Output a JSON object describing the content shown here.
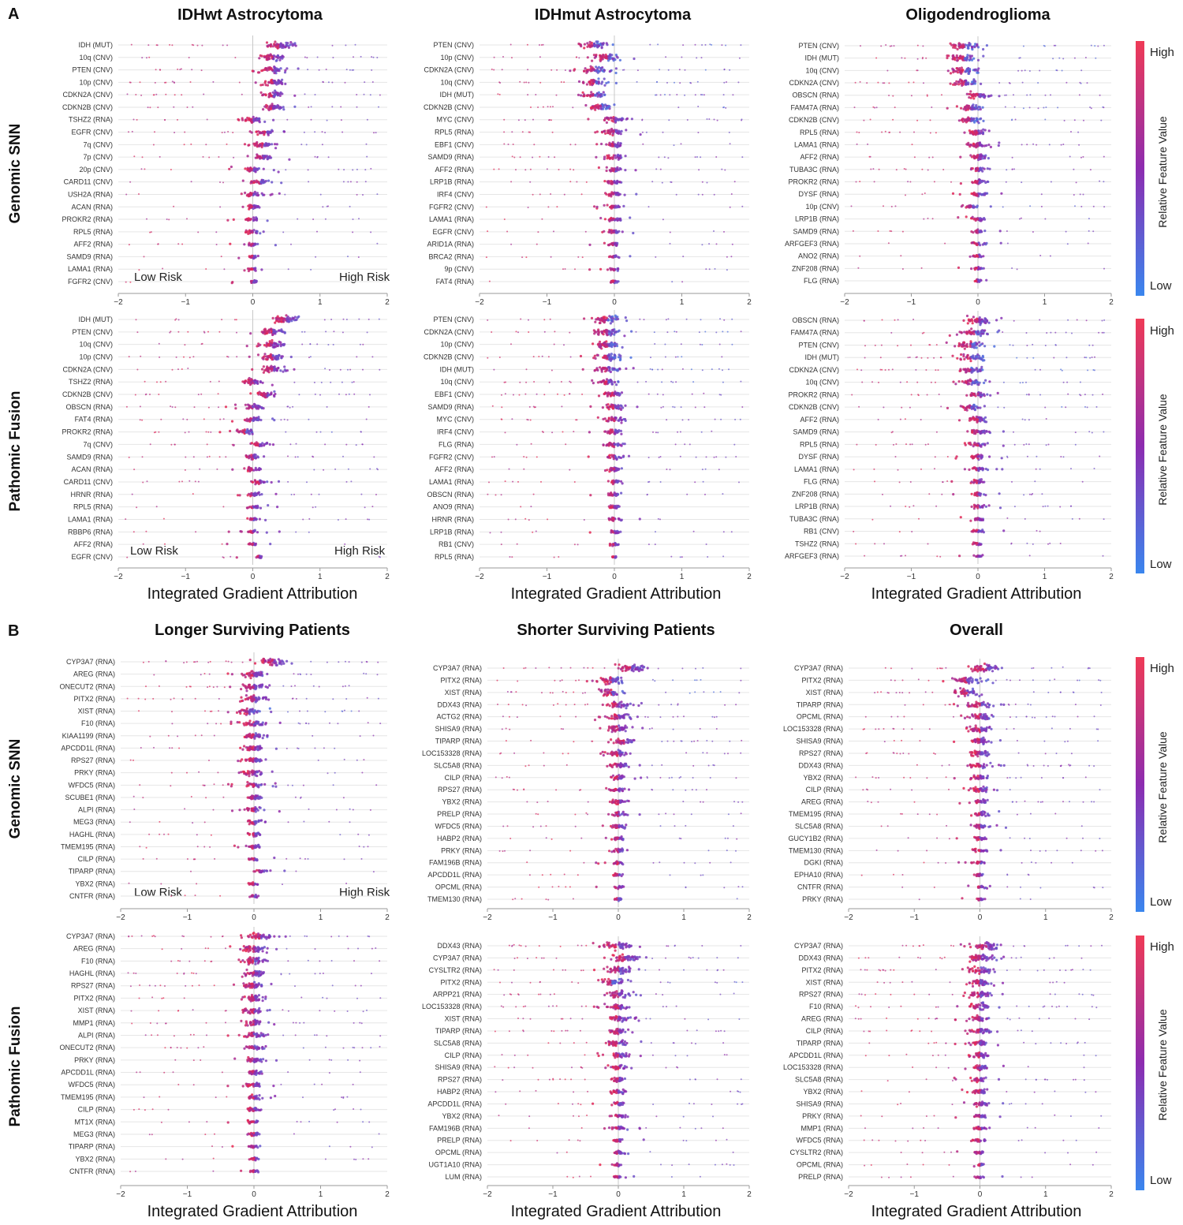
{
  "figure": {
    "panel_letters": [
      "A",
      "B"
    ],
    "row_labels": [
      "Genomic SNN",
      "Pathomic Fusion"
    ],
    "x_axis_title": "Integrated Gradient Attribution",
    "risk_labels": {
      "low": "Low Risk",
      "high": "High Risk"
    },
    "colorbar": {
      "high": "High",
      "low": "Low",
      "title": "Relative Feature Value",
      "color_high": "#ef3a56",
      "color_mid": "#8d2cb0",
      "color_low": "#3a86ee"
    },
    "colors": {
      "low": "#3a86ee",
      "mid": "#8d2cb0",
      "high": "#e8274f"
    }
  },
  "chart_data": [
    {
      "id": "a_gen_wt",
      "type": "beeswarm",
      "title": "IDHwt Astrocytoma",
      "row": "Genomic SNN",
      "xlim": [
        -2,
        2
      ],
      "xticks": [
        -2,
        -1,
        0,
        1,
        2
      ],
      "features": [
        "IDH (MUT)",
        "10q (CNV)",
        "PTEN (CNV)",
        "10p (CNV)",
        "CDKN2A (CNV)",
        "CDKN2B (CNV)",
        "TSHZ2 (RNA)",
        "EGFR (CNV)",
        "7q (CNV)",
        "7p (CNV)",
        "20p (CNV)",
        "CARD11 (CNV)",
        "USH2A (RNA)",
        "ACAN (RNA)",
        "PROKR2 (RNA)",
        "RPL5 (RNA)",
        "AFF2 (RNA)",
        "SAMD9 (RNA)",
        "LAMA1 (RNA)",
        "FGFR2 (CNV)"
      ],
      "center": [
        0.4,
        0.3,
        0.3,
        0.3,
        0.3,
        0.3,
        0.0,
        0.2,
        0.15,
        0.15,
        0.0,
        0.1,
        0.0,
        0.0,
        0.0,
        0.0,
        0.0,
        0.0,
        0.0,
        0.0
      ]
    },
    {
      "id": "a_gen_mut",
      "type": "beeswarm",
      "title": "IDHmut Astrocytoma",
      "row": "Genomic SNN",
      "xlim": [
        -2,
        2
      ],
      "xticks": [
        -2,
        -1,
        0,
        1,
        2
      ],
      "features": [
        "PTEN (CNV)",
        "10p (CNV)",
        "CDKN2A (CNV)",
        "10q (CNV)",
        "IDH (MUT)",
        "CDKN2B (CNV)",
        "MYC (CNV)",
        "RPL5 (RNA)",
        "EBF1 (CNV)",
        "SAMD9 (RNA)",
        "AFF2 (RNA)",
        "LRP1B (RNA)",
        "IRF4 (CNV)",
        "FGFR2 (CNV)",
        "LAMA1 (RNA)",
        "EGFR (CNV)",
        "ARID1A (RNA)",
        "BRCA2 (RNA)",
        "9p (CNV)",
        "FAT4 (RNA)"
      ],
      "center": [
        -0.3,
        -0.1,
        -0.3,
        -0.3,
        -0.3,
        -0.2,
        0.0,
        0.0,
        0.0,
        0.0,
        0.0,
        0.0,
        0.0,
        0.0,
        0.0,
        0.0,
        0.0,
        0.0,
        0.0,
        0.0
      ]
    },
    {
      "id": "a_gen_oligo",
      "type": "beeswarm",
      "title": "Oligodendroglioma",
      "row": "Genomic SNN",
      "xlim": [
        -2,
        2
      ],
      "xticks": [
        -2,
        -1,
        0,
        1,
        2
      ],
      "features": [
        "PTEN (CNV)",
        "IDH (MUT)",
        "10q (CNV)",
        "CDKN2A (CNV)",
        "OBSCN (RNA)",
        "FAM47A (RNA)",
        "CDKN2B (CNV)",
        "RPL5 (RNA)",
        "LAMA1 (RNA)",
        "AFF2 (RNA)",
        "TUBA3C (RNA)",
        "PROKR2 (RNA)",
        "DYSF (RNA)",
        "10p (CNV)",
        "LRP1B (RNA)",
        "SAMD9 (RNA)",
        "ARFGEF3 (RNA)",
        "ANO2 (RNA)",
        "ZNF208 (RNA)",
        "FLG (RNA)"
      ],
      "center": [
        -0.2,
        -0.2,
        -0.2,
        -0.2,
        0.0,
        -0.1,
        -0.1,
        0.0,
        0.0,
        0.0,
        0.0,
        0.0,
        0.0,
        -0.1,
        0.0,
        0.0,
        0.0,
        0.0,
        0.0,
        0.0
      ]
    },
    {
      "id": "a_path_wt",
      "type": "beeswarm",
      "title": "",
      "row": "Pathomic Fusion",
      "xlim": [
        -2,
        2
      ],
      "xticks": [
        -2,
        -1,
        0,
        1,
        2
      ],
      "features": [
        "IDH (MUT)",
        "PTEN (CNV)",
        "10q (CNV)",
        "10p (CNV)",
        "CDKN2A (CNV)",
        "TSHZ2 (RNA)",
        "CDKN2B (CNV)",
        "OBSCN (RNA)",
        "FAT4 (RNA)",
        "PROKR2 (RNA)",
        "7q (CNV)",
        "SAMD9 (RNA)",
        "ACAN (RNA)",
        "CARD11 (CNV)",
        "HRNR (RNA)",
        "RPL5 (RNA)",
        "LAMA1 (RNA)",
        "RBBP6 (RNA)",
        "AFF2 (RNA)",
        "EGFR (CNV)"
      ],
      "center": [
        0.5,
        0.3,
        0.3,
        0.3,
        0.3,
        0.0,
        0.2,
        0.0,
        0.0,
        -0.1,
        0.1,
        0.0,
        0.0,
        0.1,
        0.0,
        0.0,
        0.0,
        0.0,
        0.0,
        0.1
      ]
    },
    {
      "id": "a_path_mut",
      "type": "beeswarm",
      "title": "",
      "row": "Pathomic Fusion",
      "xlim": [
        -2,
        2
      ],
      "xticks": [
        -2,
        -1,
        0,
        1,
        2
      ],
      "features": [
        "PTEN (CNV)",
        "CDKN2A (CNV)",
        "10p (CNV)",
        "CDKN2B (CNV)",
        "IDH (MUT)",
        "10q (CNV)",
        "EBF1 (CNV)",
        "SAMD9 (RNA)",
        "MYC (CNV)",
        "IRF4 (CNV)",
        "FLG (RNA)",
        "FGFR2 (CNV)",
        "AFF2 (RNA)",
        "LAMA1 (RNA)",
        "OBSCN (RNA)",
        "ANO9 (RNA)",
        "HRNR (RNA)",
        "LRP1B (RNA)",
        "RB1 (CNV)",
        "RPL5 (RNA)"
      ],
      "center": [
        -0.1,
        -0.1,
        -0.1,
        -0.1,
        -0.1,
        -0.1,
        0.0,
        0.0,
        0.0,
        0.0,
        0.0,
        0.0,
        0.0,
        0.0,
        0.0,
        0.0,
        0.0,
        0.0,
        0.0,
        0.0
      ]
    },
    {
      "id": "a_path_oligo",
      "type": "beeswarm",
      "title": "",
      "row": "Pathomic Fusion",
      "xlim": [
        -2,
        2
      ],
      "xticks": [
        -2,
        -1,
        0,
        1,
        2
      ],
      "features": [
        "OBSCN (RNA)",
        "FAM47A (RNA)",
        "PTEN (CNV)",
        "IDH (MUT)",
        "CDKN2A (CNV)",
        "10q (CNV)",
        "PROKR2 (RNA)",
        "CDKN2B (CNV)",
        "AFF2 (RNA)",
        "SAMD9 (RNA)",
        "RPL5 (RNA)",
        "DYSF (RNA)",
        "LAMA1 (RNA)",
        "FLG (RNA)",
        "ZNF208 (RNA)",
        "LRP1B (RNA)",
        "TUBA3C (RNA)",
        "RB1 (CNV)",
        "TSHZ2 (RNA)",
        "ARFGEF3 (RNA)"
      ],
      "center": [
        0.0,
        -0.05,
        -0.1,
        -0.1,
        -0.1,
        -0.1,
        0.0,
        -0.1,
        0.0,
        0.0,
        0.0,
        0.0,
        0.0,
        0.0,
        0.0,
        0.0,
        0.0,
        0.0,
        0.0,
        0.0
      ]
    },
    {
      "id": "b_gen_long",
      "type": "beeswarm",
      "title": "Longer Surviving Patients",
      "row": "Genomic SNN",
      "xlim": [
        -2,
        2
      ],
      "xticks": [
        -2,
        -1,
        0,
        1,
        2
      ],
      "features": [
        "CYP3A7 (RNA)",
        "AREG (RNA)",
        "ONECUT2 (RNA)",
        "PITX2 (RNA)",
        "XIST (RNA)",
        "F10 (RNA)",
        "KIAA1199 (RNA)",
        "APCDD1L (RNA)",
        "RPS27 (RNA)",
        "PRKY (RNA)",
        "WFDC5 (RNA)",
        "SCUBE1 (RNA)",
        "ALPI (RNA)",
        "MEG3 (RNA)",
        "HAGHL (RNA)",
        "TMEM195 (RNA)",
        "CILP (RNA)",
        "TIPARP (RNA)",
        "YBX2 (RNA)",
        "CNTFR (RNA)"
      ],
      "center": [
        0.3,
        0.0,
        0.0,
        0.0,
        -0.1,
        0.0,
        0.0,
        0.0,
        0.0,
        0.0,
        0.0,
        0.0,
        0.0,
        0.0,
        0.0,
        0.0,
        0.0,
        0.1,
        0.0,
        0.0
      ]
    },
    {
      "id": "b_gen_short",
      "type": "beeswarm",
      "title": "Shorter Surviving Patients",
      "row": "Genomic SNN",
      "xlim": [
        -2,
        2
      ],
      "xticks": [
        -2,
        -1,
        0,
        1,
        2
      ],
      "features": [
        "CYP3A7 (RNA)",
        "PITX2 (RNA)",
        "XIST (RNA)",
        "DDX43 (RNA)",
        "ACTG2 (RNA)",
        "SHISA9 (RNA)",
        "TIPARP (RNA)",
        "LOC153328 (RNA)",
        "SLC5A8 (RNA)",
        "CILP (RNA)",
        "RPS27 (RNA)",
        "YBX2 (RNA)",
        "PRELP (RNA)",
        "WFDC5 (RNA)",
        "HABP2 (RNA)",
        "PRKY (RNA)",
        "FAM196B (RNA)",
        "APCDD1L (RNA)",
        "OPCML (RNA)",
        "TMEM130 (RNA)"
      ],
      "center": [
        0.2,
        -0.1,
        -0.1,
        0.0,
        0.0,
        0.0,
        0.1,
        0.0,
        0.0,
        0.0,
        0.0,
        0.0,
        0.0,
        0.0,
        0.0,
        0.0,
        0.0,
        0.0,
        0.0,
        0.0
      ]
    },
    {
      "id": "b_gen_overall",
      "type": "beeswarm",
      "title": "Overall",
      "row": "Genomic SNN",
      "xlim": [
        -2,
        2
      ],
      "xticks": [
        -2,
        -1,
        0,
        1,
        2
      ],
      "features": [
        "CYP3A7 (RNA)",
        "PITX2 (RNA)",
        "XIST (RNA)",
        "TIPARP (RNA)",
        "OPCML (RNA)",
        "LOC153328 (RNA)",
        "SHISA9 (RNA)",
        "RPS27 (RNA)",
        "DDX43 (RNA)",
        "YBX2 (RNA)",
        "CILP (RNA)",
        "AREG (RNA)",
        "TMEM195 (RNA)",
        "SLC5A8 (RNA)",
        "GUCY1B2 (RNA)",
        "TMEM130 (RNA)",
        "DGKI (RNA)",
        "EPHA10 (RNA)",
        "CNTFR (RNA)",
        "PRKY (RNA)"
      ],
      "center": [
        0.1,
        -0.2,
        -0.2,
        0.0,
        0.0,
        0.0,
        0.0,
        0.0,
        0.0,
        0.0,
        0.0,
        0.0,
        0.0,
        0.0,
        0.0,
        0.0,
        0.0,
        0.0,
        0.0,
        0.0
      ]
    },
    {
      "id": "b_path_long",
      "type": "beeswarm",
      "title": "",
      "row": "Pathomic Fusion",
      "xlim": [
        -2,
        2
      ],
      "xticks": [
        -2,
        -1,
        0,
        1,
        2
      ],
      "features": [
        "CYP3A7 (RNA)",
        "AREG (RNA)",
        "F10 (RNA)",
        "HAGHL (RNA)",
        "RPS27 (RNA)",
        "PITX2 (RNA)",
        "XIST (RNA)",
        "MMP1 (RNA)",
        "ALPI (RNA)",
        "ONECUT2 (RNA)",
        "PRKY (RNA)",
        "APCDD1L (RNA)",
        "WFDC5 (RNA)",
        "TMEM195 (RNA)",
        "CILP (RNA)",
        "MT1X (RNA)",
        "MEG3 (RNA)",
        "TIPARP (RNA)",
        "YBX2 (RNA)",
        "CNTFR (RNA)"
      ],
      "center": [
        0.1,
        0.0,
        0.0,
        0.0,
        0.0,
        0.0,
        0.0,
        0.0,
        0.0,
        0.0,
        0.0,
        0.0,
        0.0,
        0.0,
        0.0,
        0.0,
        0.0,
        0.0,
        0.0,
        0.0
      ]
    },
    {
      "id": "b_path_short",
      "type": "beeswarm",
      "title": "",
      "row": "Pathomic Fusion",
      "xlim": [
        -2,
        2
      ],
      "xticks": [
        -2,
        -1,
        0,
        1,
        2
      ],
      "features": [
        "DDX43 (RNA)",
        "CYP3A7 (RNA)",
        "CYSLTR2 (RNA)",
        "PITX2 (RNA)",
        "ARPP21 (RNA)",
        "LOC153328 (RNA)",
        "XIST (RNA)",
        "TIPARP (RNA)",
        "SLC5A8 (RNA)",
        "CILP (RNA)",
        "SHISA9 (RNA)",
        "RPS27 (RNA)",
        "HABP2 (RNA)",
        "APCDD1L (RNA)",
        "YBX2 (RNA)",
        "FAM196B (RNA)",
        "PRELP (RNA)",
        "OPCML (RNA)",
        "UGT1A10 (RNA)",
        "LUM (RNA)"
      ],
      "center": [
        0.0,
        0.1,
        0.0,
        -0.1,
        0.0,
        0.0,
        0.0,
        0.0,
        0.0,
        0.0,
        0.0,
        0.0,
        0.0,
        0.0,
        0.0,
        0.0,
        0.0,
        0.0,
        0.0,
        0.0
      ]
    },
    {
      "id": "b_path_overall",
      "type": "beeswarm",
      "title": "",
      "row": "Pathomic Fusion",
      "xlim": [
        -2,
        2
      ],
      "xticks": [
        -2,
        -1,
        0,
        1,
        2
      ],
      "features": [
        "CYP3A7 (RNA)",
        "DDX43 (RNA)",
        "PITX2 (RNA)",
        "XIST (RNA)",
        "RPS27 (RNA)",
        "F10 (RNA)",
        "AREG (RNA)",
        "CILP (RNA)",
        "TIPARP (RNA)",
        "APCDD1L (RNA)",
        "LOC153328 (RNA)",
        "SLC5A8 (RNA)",
        "YBX2 (RNA)",
        "SHISA9 (RNA)",
        "PRKY (RNA)",
        "MMP1 (RNA)",
        "WFDC5 (RNA)",
        "CYSLTR2 (RNA)",
        "OPCML (RNA)",
        "PRELP (RNA)"
      ],
      "center": [
        0.1,
        0.0,
        0.0,
        0.0,
        0.0,
        0.0,
        0.0,
        0.0,
        0.0,
        0.0,
        0.0,
        0.0,
        0.0,
        0.0,
        0.0,
        0.0,
        0.0,
        0.0,
        0.0,
        0.0
      ]
    }
  ]
}
